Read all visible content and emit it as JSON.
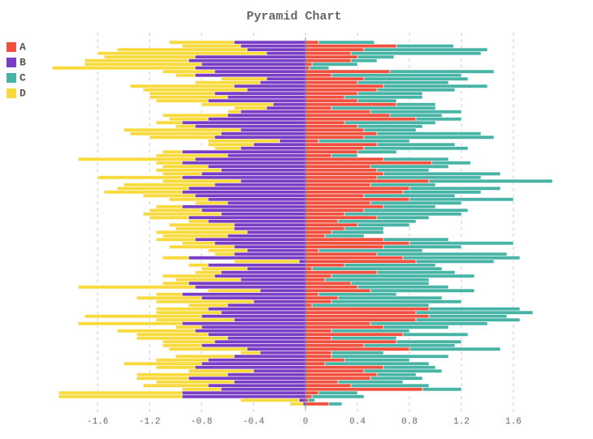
{
  "chart_data": {
    "type": "pyramid",
    "title": "Pyramid Chart",
    "xlim": [
      -2.07,
      2.1
    ],
    "xticks": [
      -1.6,
      -1.2,
      -0.8,
      -0.4,
      0,
      0.4,
      0.8,
      1.2,
      1.6
    ],
    "grid": true,
    "legend": "top-left",
    "series": [
      {
        "name": "A",
        "color": "#f0513f",
        "values": [
          0.1,
          0.7,
          0.45,
          0.35,
          0.4,
          0.35,
          0.05,
          0.03,
          0.65,
          0.2,
          0.45,
          0.4,
          0.6,
          0.55,
          0.4,
          0.3,
          0.4,
          0.7,
          0.2,
          0.5,
          0.65,
          0.85,
          0.3,
          0.4,
          0.45,
          0.55,
          0.45,
          0.1,
          0.55,
          0.45,
          0.4,
          0.2,
          0.6,
          0.97,
          0.5,
          0.55,
          0.6,
          0.55,
          0.95,
          0.5,
          0.8,
          0.75,
          0.45,
          0.8,
          0.5,
          0.6,
          0.45,
          0.3,
          0.55,
          0.25,
          0.4,
          0.3,
          0.2,
          0.15,
          0.6,
          0.8,
          0.6,
          0.1,
          0.55,
          0.75,
          0.85,
          0.3,
          0.05,
          0.55,
          0.2,
          0.15,
          0.35,
          0.4,
          0.5,
          0.1,
          0.25,
          0.2,
          0.05,
          0.95,
          0.85,
          0.95,
          0.85,
          0.5,
          0.6,
          0.2,
          0.75,
          0.2,
          0.7,
          0.45,
          0.8,
          0.2,
          0.2,
          0.3,
          0.15,
          0.6,
          0.45,
          0.55,
          0.5,
          0.25,
          0.35,
          0.9,
          0.1,
          0.05,
          0.02,
          0.18
        ]
      },
      {
        "name": "B",
        "color": "#7a3ec4",
        "values": [
          -0.55,
          -0.5,
          -0.45,
          -0.3,
          -0.85,
          -0.9,
          -0.8,
          -0.85,
          -0.7,
          -0.85,
          -0.3,
          -0.35,
          -0.55,
          -0.45,
          -0.7,
          -0.6,
          -0.75,
          -0.25,
          -0.3,
          -0.5,
          -0.6,
          -0.75,
          -0.95,
          -0.85,
          -0.5,
          -0.65,
          -0.7,
          -0.2,
          -0.4,
          -0.5,
          -0.95,
          -0.6,
          -0.85,
          -0.95,
          -0.75,
          -0.65,
          -0.8,
          -0.95,
          -0.5,
          -0.7,
          -0.9,
          -0.95,
          -0.85,
          -0.75,
          -0.6,
          -0.95,
          -0.8,
          -0.65,
          -0.9,
          -0.75,
          -0.55,
          -0.55,
          -0.45,
          -0.6,
          -0.85,
          -0.7,
          -0.55,
          -0.45,
          -0.55,
          -0.9,
          -0.05,
          -0.75,
          -0.45,
          -0.65,
          -0.7,
          -0.5,
          -0.9,
          -0.85,
          -0.35,
          -0.95,
          -0.8,
          -0.4,
          -0.6,
          -0.75,
          -0.65,
          -0.8,
          -0.55,
          -0.95,
          -0.8,
          -0.85,
          -0.75,
          -0.6,
          -0.7,
          -0.8,
          -0.45,
          -0.35,
          -0.55,
          -0.75,
          -0.8,
          -0.85,
          -0.4,
          -0.6,
          -0.9,
          -0.55,
          -0.75,
          -0.65,
          -0.95,
          -0.95,
          -0.05,
          -0.02
        ]
      },
      {
        "name": "C",
        "color": "#47b4a6",
        "values": [
          0.43,
          0.44,
          0.95,
          1.0,
          0.28,
          0.2,
          0.35,
          0.15,
          0.8,
          1.0,
          0.8,
          0.7,
          0.8,
          0.6,
          0.5,
          0.6,
          0.3,
          0.3,
          0.8,
          0.7,
          0.4,
          0.35,
          0.7,
          0.5,
          0.4,
          0.8,
          1.0,
          0.7,
          0.6,
          0.8,
          0.3,
          0.2,
          0.5,
          0.3,
          0.6,
          0.4,
          0.9,
          0.8,
          0.95,
          0.5,
          0.7,
          0.6,
          0.7,
          0.8,
          0.7,
          0.4,
          0.8,
          0.9,
          0.4,
          0.6,
          0.4,
          0.3,
          0.4,
          0.3,
          0.5,
          0.8,
          0.6,
          0.8,
          1.0,
          0.9,
          0.6,
          0.7,
          1.0,
          0.6,
          1.1,
          0.8,
          0.6,
          0.7,
          0.8,
          0.6,
          0.8,
          1.0,
          0.9,
          0.7,
          0.9,
          0.6,
          0.8,
          0.9,
          0.5,
          0.6,
          0.5,
          0.5,
          0.5,
          0.7,
          0.7,
          0.4,
          0.9,
          0.5,
          0.8,
          0.4,
          0.6,
          0.3,
          0.4,
          0.5,
          0.6,
          0.3,
          0.3,
          0.4,
          0.05,
          0.1
        ]
      },
      {
        "name": "D",
        "color": "#f9da3c",
        "values": [
          -0.5,
          -0.45,
          -1.0,
          -1.3,
          -0.7,
          -0.8,
          -0.9,
          -1.1,
          -0.4,
          -0.15,
          -0.35,
          -0.5,
          -0.8,
          -0.8,
          -0.5,
          -0.6,
          -0.4,
          -0.55,
          -0.25,
          -0.1,
          -0.5,
          -0.3,
          -0.2,
          -0.15,
          -0.9,
          -0.7,
          -0.5,
          -0.55,
          -0.35,
          -0.2,
          -0.15,
          -0.55,
          -0.9,
          -0.2,
          -0.35,
          -0.5,
          -0.3,
          -0.65,
          -0.6,
          -0.7,
          -0.55,
          -0.6,
          -0.4,
          -0.3,
          -0.25,
          -0.2,
          -0.4,
          -0.6,
          -0.3,
          -0.15,
          -0.5,
          -0.45,
          -0.7,
          -0.5,
          -0.3,
          -0.25,
          -0.5,
          -0.3,
          -0.15,
          -0.2,
          -0.5,
          -0.15,
          -0.35,
          -0.2,
          -0.4,
          -0.5,
          -0.2,
          -0.9,
          -0.4,
          -0.2,
          -0.5,
          -0.75,
          -0.3,
          -0.4,
          -0.5,
          -0.9,
          -0.6,
          -0.8,
          -0.2,
          -0.6,
          -0.55,
          -0.7,
          -0.4,
          -0.3,
          -0.6,
          -0.15,
          -0.45,
          -0.4,
          -0.6,
          -0.3,
          -0.5,
          -0.7,
          -0.4,
          -0.6,
          -0.5,
          -0.3,
          -0.95,
          -0.95,
          -0.45,
          -0.1
        ]
      }
    ]
  }
}
